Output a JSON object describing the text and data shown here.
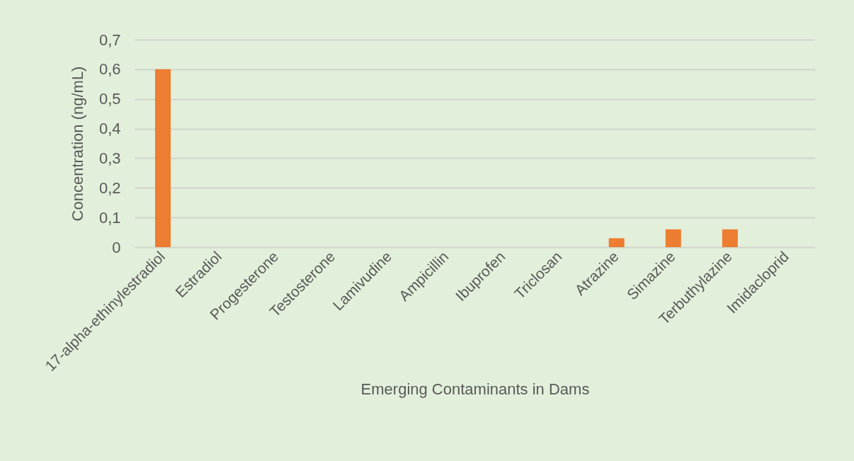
{
  "chart_data": {
    "type": "bar",
    "xlabel": "Emerging Contaminants in Dams",
    "ylabel": "Concentration (ng/mL)",
    "categories": [
      "17-alpha-ethinylestradiol",
      "Estradiol",
      "Progesterone",
      "Testosterone",
      "Lamivudine",
      "Ampicillin",
      "Ibuprofen",
      "Triclosan",
      "Atrazine",
      "Simazine",
      "Terbuthylazine",
      "Imidacloprid"
    ],
    "values": [
      0.6,
      0,
      0,
      0,
      0,
      0,
      0,
      0,
      0.03,
      0.06,
      0.06,
      0
    ],
    "color": "#ed7d31",
    "ylim": [
      0,
      0.7
    ],
    "yticks": [
      0,
      {
        "value": 0.1,
        "label": "0,1"
      },
      {
        "value": 0.2,
        "label": "0,2"
      },
      {
        "value": 0.3,
        "label": "0,3"
      },
      {
        "value": 0.4,
        "label": "0,4"
      },
      {
        "value": 0.5,
        "label": "0,5"
      },
      {
        "value": 0.6,
        "label": "0,6"
      },
      {
        "value": 0.7,
        "label": "0,7"
      }
    ],
    "grid": "y"
  }
}
